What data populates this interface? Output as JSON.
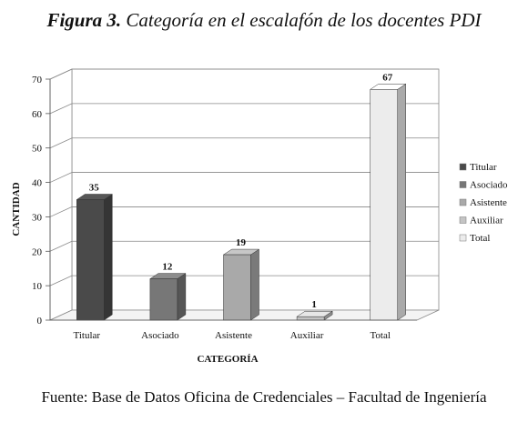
{
  "figure": {
    "number_label": "Figura 3.",
    "caption": "Categoría en el escalafón de los docentes PDI"
  },
  "source_note": "Fuente: Base de Datos Oficina de Credenciales – Facultad de Ingeniería",
  "chart_data": {
    "type": "bar",
    "style": "3d-column",
    "categories": [
      "Titular",
      "Asociado",
      "Asistente",
      "Auxiliar",
      "Total"
    ],
    "values": [
      35,
      12,
      19,
      1,
      67
    ],
    "xlabel": "CATEGORÍA",
    "ylabel": "CANTIDAD",
    "ylim": [
      0,
      70
    ],
    "yticks": [
      0,
      10,
      20,
      30,
      40,
      50,
      60,
      70
    ],
    "grid": true,
    "data_labels": true,
    "legend": {
      "placement": "right",
      "entries": [
        "Titular",
        "Asociado",
        "Asistente",
        "Auxiliar",
        "Total"
      ]
    },
    "colors": [
      "#4a4a4a",
      "#777777",
      "#a9a9a9",
      "#c4c4c4",
      "#ececec"
    ]
  }
}
